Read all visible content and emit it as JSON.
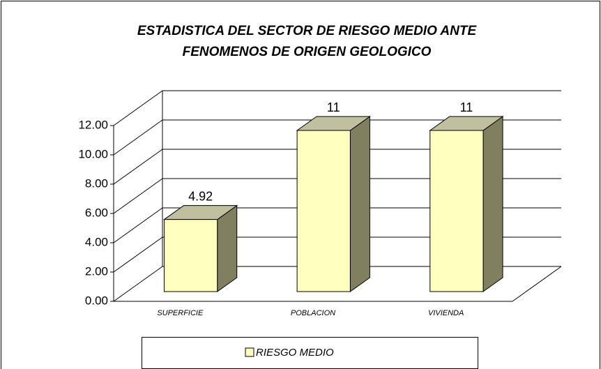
{
  "chart_data": {
    "type": "bar3d",
    "title": "ESTADISTICA DEL SECTOR DE RIESGO MEDIO ANTE",
    "subtitle": "FENOMENOS DE ORIGEN GEOLOGICO",
    "categories": [
      "SUPERFICIE",
      "POBLACION",
      "VIVIENDA"
    ],
    "series": [
      {
        "name": "RIESGO MEDIO",
        "color": "#ffffc0",
        "values": [
          4.92,
          11,
          11
        ]
      }
    ],
    "ylim": [
      0,
      12
    ],
    "yticks": [
      {
        "value": 0,
        "label": "0.00"
      },
      {
        "value": 2,
        "label": "2.00"
      },
      {
        "value": 4,
        "label": "4.00"
      },
      {
        "value": 6,
        "label": "6.00"
      },
      {
        "value": 8,
        "label": "8.00"
      },
      {
        "value": 10,
        "label": "10.00"
      },
      {
        "value": 12,
        "label": "12.00"
      }
    ],
    "grid": true,
    "legend": "bottom"
  }
}
